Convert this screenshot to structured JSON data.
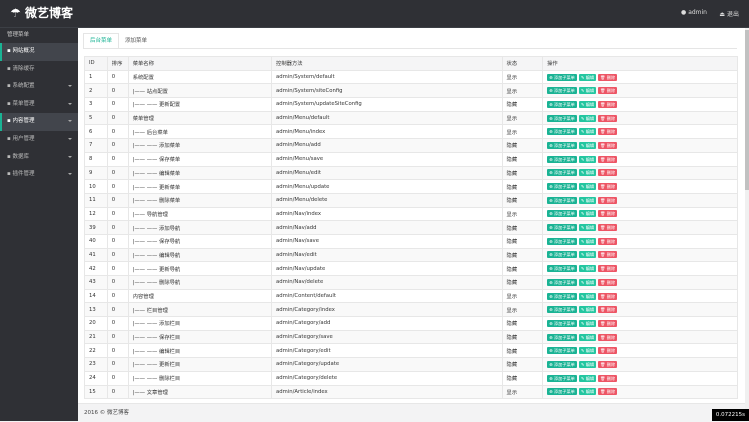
{
  "header": {
    "logo": "微艺博客",
    "user": "admin",
    "logout": "退出"
  },
  "sidebar": {
    "title": "管理菜单",
    "items": [
      "网站概况",
      "清除缓存",
      "系统配置",
      "菜单管理",
      "内容管理",
      "用户管理",
      "数据库",
      "插件管理"
    ]
  },
  "tabs": [
    "后台菜单",
    "添加菜单"
  ],
  "table": {
    "columns": [
      "ID",
      "排序",
      "菜单名称",
      "控制器方法",
      "状态",
      "操作"
    ],
    "actions": [
      "添加子菜单",
      "编辑",
      "删除"
    ],
    "rows": [
      [
        "1",
        "0",
        "系统配置",
        "admin/System/default",
        "显示"
      ],
      [
        "2",
        "0",
        "|—— 站点配置",
        "admin/System/siteConfig",
        "显示"
      ],
      [
        "3",
        "0",
        "|—— —— 更新配置",
        "admin/System/updateSiteConfig",
        "隐藏"
      ],
      [
        "5",
        "0",
        "菜单管理",
        "admin/Menu/default",
        "显示"
      ],
      [
        "6",
        "0",
        "|—— 后台菜单",
        "admin/Menu/index",
        "显示"
      ],
      [
        "7",
        "0",
        "|—— —— 添加菜单",
        "admin/Menu/add",
        "隐藏"
      ],
      [
        "8",
        "0",
        "|—— —— 保存菜单",
        "admin/Menu/save",
        "隐藏"
      ],
      [
        "9",
        "0",
        "|—— —— 编辑菜单",
        "admin/Menu/edit",
        "隐藏"
      ],
      [
        "10",
        "0",
        "|—— —— 更新菜单",
        "admin/Menu/update",
        "隐藏"
      ],
      [
        "11",
        "0",
        "|—— —— 删除菜单",
        "admin/Menu/delete",
        "隐藏"
      ],
      [
        "12",
        "0",
        "|—— 导航管理",
        "admin/Nav/index",
        "显示"
      ],
      [
        "39",
        "0",
        "|—— —— 添加导航",
        "admin/Nav/add",
        "隐藏"
      ],
      [
        "40",
        "0",
        "|—— —— 保存导航",
        "admin/Nav/save",
        "隐藏"
      ],
      [
        "41",
        "0",
        "|—— —— 编辑导航",
        "admin/Nav/edit",
        "隐藏"
      ],
      [
        "42",
        "0",
        "|—— —— 更新导航",
        "admin/Nav/update",
        "隐藏"
      ],
      [
        "43",
        "0",
        "|—— —— 删除导航",
        "admin/Nav/delete",
        "隐藏"
      ],
      [
        "14",
        "0",
        "内容管理",
        "admin/Content/default",
        "显示"
      ],
      [
        "13",
        "0",
        "|—— 栏目管理",
        "admin/Category/index",
        "显示"
      ],
      [
        "20",
        "0",
        "|—— —— 添加栏目",
        "admin/Category/add",
        "隐藏"
      ],
      [
        "21",
        "0",
        "|—— —— 保存栏目",
        "admin/Category/save",
        "隐藏"
      ],
      [
        "22",
        "0",
        "|—— —— 编辑栏目",
        "admin/Category/edit",
        "隐藏"
      ],
      [
        "23",
        "0",
        "|—— —— 更新栏目",
        "admin/Category/update",
        "隐藏"
      ],
      [
        "24",
        "0",
        "|—— —— 删除栏目",
        "admin/Category/delete",
        "隐藏"
      ],
      [
        "15",
        "0",
        "|—— 文章管理",
        "admin/Article/index",
        "显示"
      ]
    ]
  },
  "footer": {
    "copyright": "2016 © 微艺博客",
    "timer": "0.072215s"
  }
}
